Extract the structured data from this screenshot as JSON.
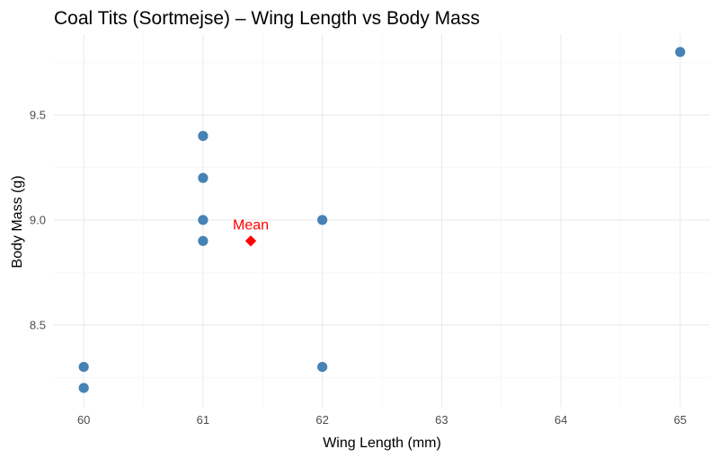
{
  "chart_data": {
    "type": "scatter",
    "title": "Coal Tits (Sortmejse) – Wing Length vs Body Mass",
    "xlabel": "Wing Length (mm)",
    "ylabel": "Body Mass (g)",
    "xlim": [
      59.75,
      65.25
    ],
    "ylim": [
      8.11,
      9.885
    ],
    "xticks": [
      60,
      61,
      62,
      63,
      64,
      65
    ],
    "yticks": [
      8.5,
      9.0,
      9.5
    ],
    "ytick_labels": [
      "8.5",
      "9.0",
      "9.5"
    ],
    "grid": true,
    "legend": "none",
    "series": [
      {
        "color": "#4682b4",
        "points": [
          {
            "x": 60,
            "y": 8.3
          },
          {
            "x": 60,
            "y": 8.2
          },
          {
            "x": 61,
            "y": 9.4
          },
          {
            "x": 61,
            "y": 9.2
          },
          {
            "x": 61,
            "y": 9.0
          },
          {
            "x": 61,
            "y": 8.9
          },
          {
            "x": 62,
            "y": 9.0
          },
          {
            "x": 62,
            "y": 8.3
          },
          {
            "x": 65,
            "y": 9.8
          }
        ]
      }
    ],
    "annotations": [
      {
        "label": "Mean",
        "x": 61.4,
        "y": 8.9,
        "color": "#ff0000",
        "marker": "diamond"
      }
    ]
  }
}
